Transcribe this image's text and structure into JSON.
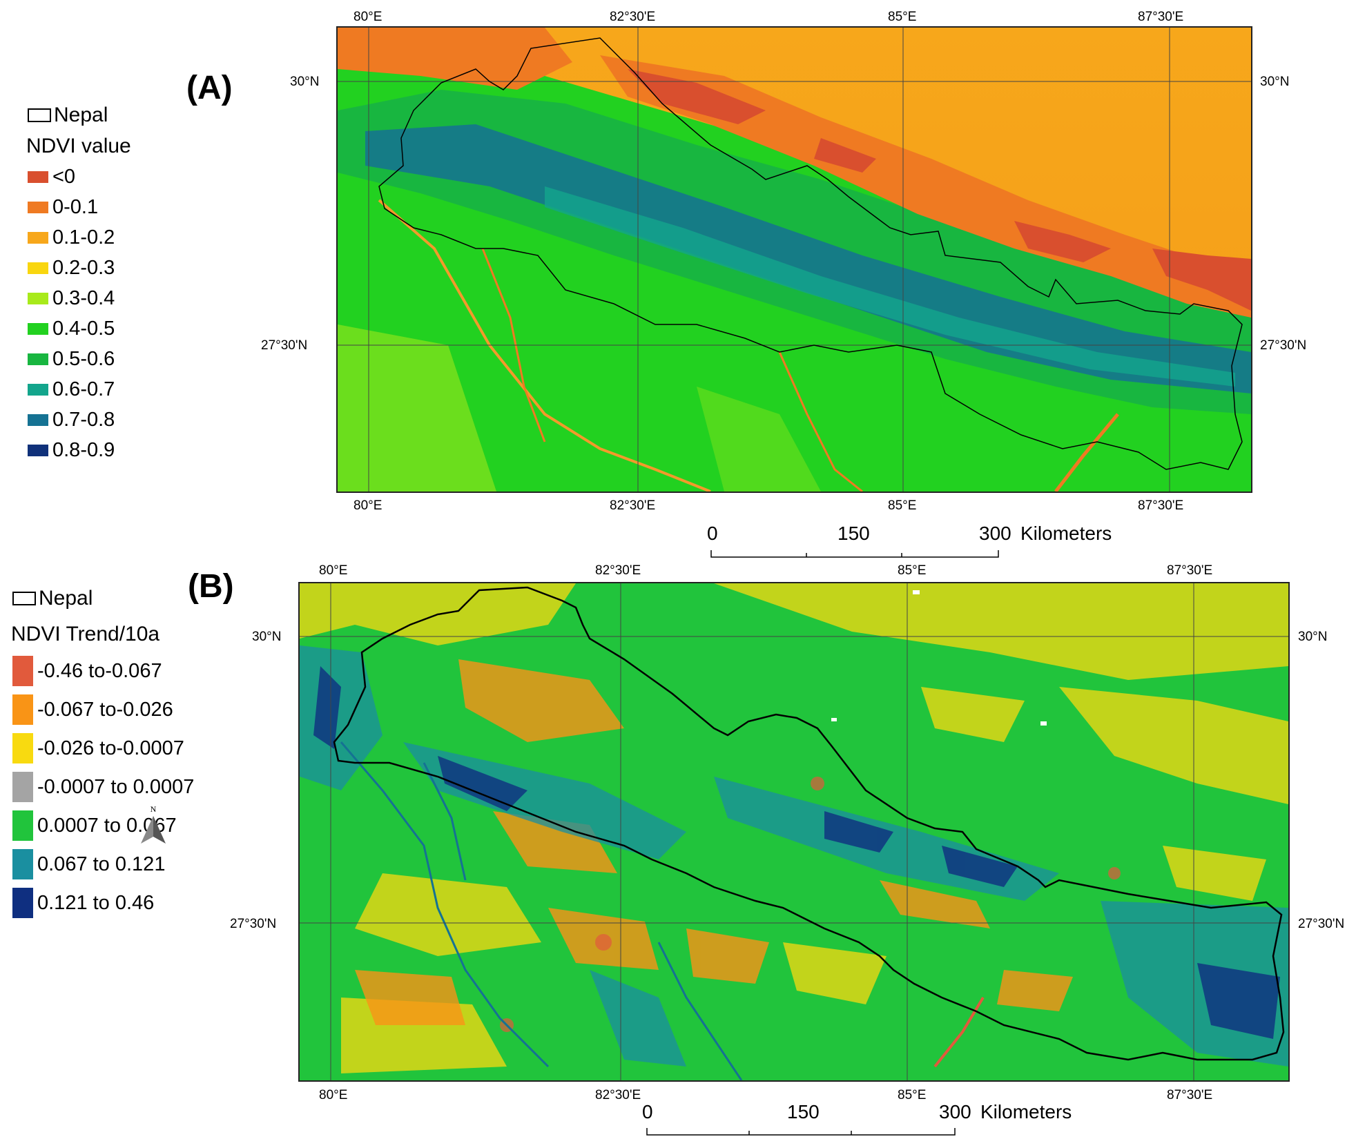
{
  "panel_a": {
    "label": "(A)",
    "legend": {
      "boundary_label": "Nepal",
      "title": "NDVI value",
      "classes": [
        {
          "label": "<0",
          "color": "#d94f2e"
        },
        {
          "label": "0-0.1",
          "color": "#ef7a22"
        },
        {
          "label": "0.1-0.2",
          "color": "#f7a71b"
        },
        {
          "label": "0.2-0.3",
          "color": "#f9d60f"
        },
        {
          "label": "0.3-0.4",
          "color": "#a8ea1b"
        },
        {
          "label": "0.4-0.5",
          "color": "#22d120"
        },
        {
          "label": "0.5-0.6",
          "color": "#18b640"
        },
        {
          "label": "0.6-0.7",
          "color": "#13a58c"
        },
        {
          "label": "0.7-0.8",
          "color": "#157293"
        },
        {
          "label": "0.8-0.9",
          "color": "#10317a"
        }
      ]
    },
    "lon_ticks": [
      "80°E",
      "82°30'E",
      "85°E",
      "87°30'E"
    ],
    "lat_ticks": [
      "30°N",
      "27°30'N"
    ],
    "scale_bar": {
      "ticks": [
        "0",
        "150",
        "300"
      ],
      "unit": "Kilometers"
    }
  },
  "panel_b": {
    "label": "(B)",
    "legend": {
      "boundary_label": "Nepal",
      "title": "NDVI Trend/10a",
      "classes": [
        {
          "label": "-0.46 to-0.067",
          "color": "#e15a3c"
        },
        {
          "label": "-0.067 to-0.026",
          "color": "#f99416"
        },
        {
          "label": "-0.026 to-0.0007",
          "color": "#f8da10"
        },
        {
          "label": "-0.0007 to 0.0007",
          "color": "#a4a4a4"
        },
        {
          "label": "0.0007 to 0.067",
          "color": "#21c43c"
        },
        {
          "label": "0.067 to 0.121",
          "color": "#1a8fa0"
        },
        {
          "label": "0.121 to 0.46",
          "color": "#0f2f80"
        }
      ]
    },
    "lon_ticks": [
      "80°E",
      "82°30'E",
      "85°E",
      "87°30'E"
    ],
    "lat_ticks": [
      "30°N",
      "27°30'N"
    ],
    "scale_bar": {
      "ticks": [
        "0",
        "150",
        "300"
      ],
      "unit": "Kilometers"
    }
  },
  "north_arrow": {
    "label": "N",
    "icon": "north-arrow-icon"
  }
}
